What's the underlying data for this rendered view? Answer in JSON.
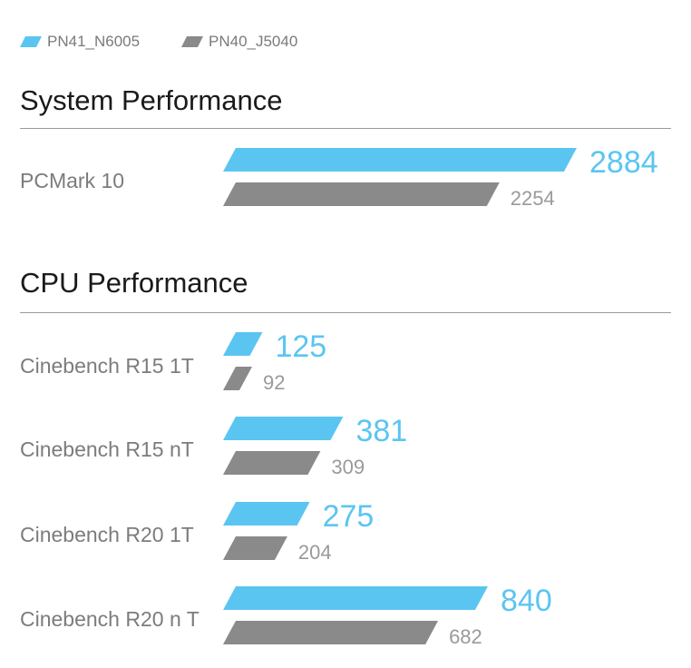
{
  "colors": {
    "series1": "#5bc5f1",
    "series2": "#8a8a8a",
    "value2_text": "#9a9a9a"
  },
  "legend": [
    {
      "name": "PN41_N6005"
    },
    {
      "name": "PN40_J5040"
    }
  ],
  "sections": [
    {
      "title": "System Performance"
    },
    {
      "title": "CPU Performance"
    }
  ],
  "chart_data": [
    {
      "type": "bar",
      "title": "System Performance",
      "categories": [
        "PCMark 10"
      ],
      "series": [
        {
          "name": "PN41_N6005",
          "values": [
            2884
          ]
        },
        {
          "name": "PN40_J5040",
          "values": [
            2254
          ]
        }
      ]
    },
    {
      "type": "bar",
      "title": "CPU Performance",
      "categories": [
        "Cinebench R15 1T",
        "Cinebench R15 nT",
        "Cinebench R20 1T",
        "Cinebench R20 n T"
      ],
      "series": [
        {
          "name": "PN41_N6005",
          "values": [
            125,
            381,
            275,
            840
          ]
        },
        {
          "name": "PN40_J5040",
          "values": [
            92,
            309,
            204,
            682
          ]
        }
      ]
    }
  ]
}
